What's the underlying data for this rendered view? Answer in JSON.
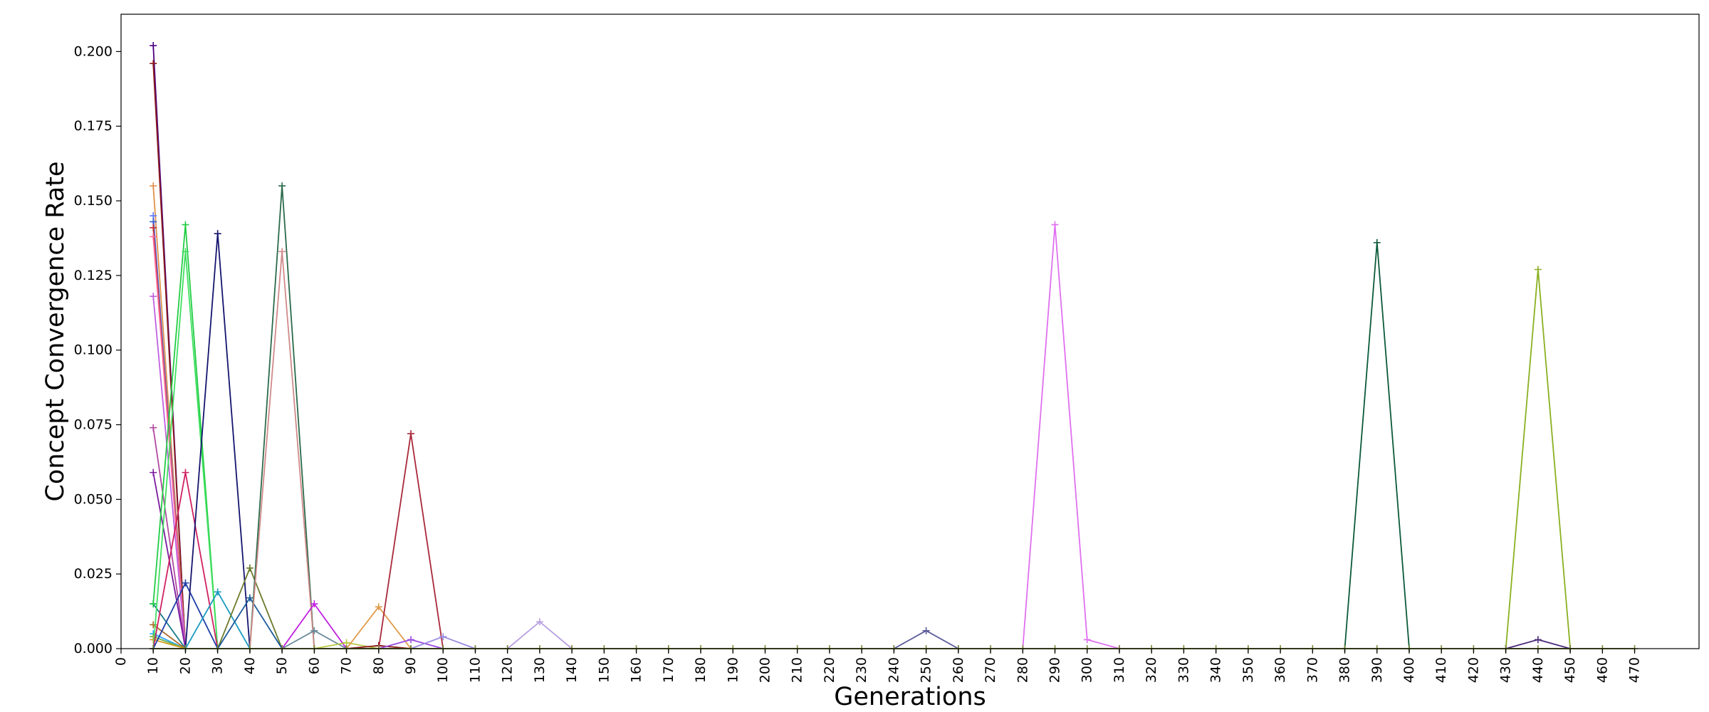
{
  "chart_data": {
    "type": "line",
    "title": "",
    "xlabel": "Generations",
    "ylabel": "Concept Convergence Rate",
    "xlim": [
      0,
      490
    ],
    "ylim": [
      0,
      0.2125
    ],
    "x_ticks": [
      0,
      10,
      20,
      30,
      40,
      50,
      60,
      70,
      80,
      90,
      100,
      110,
      120,
      130,
      140,
      150,
      160,
      170,
      180,
      190,
      200,
      210,
      220,
      230,
      240,
      250,
      260,
      270,
      280,
      290,
      300,
      310,
      320,
      330,
      340,
      350,
      360,
      370,
      380,
      390,
      400,
      410,
      420,
      430,
      440,
      450,
      460,
      470
    ],
    "y_ticks": [
      0.0,
      0.025,
      0.05,
      0.075,
      0.1,
      0.125,
      0.15,
      0.175,
      0.2
    ],
    "y_tick_labels": [
      "0.000",
      "0.025",
      "0.050",
      "0.075",
      "0.100",
      "0.125",
      "0.150",
      "0.175",
      "0.200"
    ],
    "grid": false,
    "legend": "none",
    "marker": "+",
    "baseline": {
      "x": [
        10,
        470
      ],
      "y": 0,
      "color": "#7a8a3a"
    },
    "series": [
      {
        "color": "#4b0082",
        "x": [
          10,
          20
        ],
        "y": [
          0.202,
          0.0
        ]
      },
      {
        "color": "#8b1a1a",
        "x": [
          10,
          20
        ],
        "y": [
          0.196,
          0.0
        ]
      },
      {
        "color": "#e0904a",
        "x": [
          10,
          20
        ],
        "y": [
          0.155,
          0.0
        ]
      },
      {
        "color": "#5a7aff",
        "x": [
          10,
          20
        ],
        "y": [
          0.145,
          0.0
        ]
      },
      {
        "color": "#3a5fcd",
        "x": [
          10,
          20
        ],
        "y": [
          0.143,
          0.0
        ]
      },
      {
        "color": "#c83232",
        "x": [
          10,
          20
        ],
        "y": [
          0.141,
          0.0
        ]
      },
      {
        "color": "#ff6a9a",
        "x": [
          10,
          20
        ],
        "y": [
          0.138,
          0.0
        ]
      },
      {
        "color": "#c060e0",
        "x": [
          10,
          20
        ],
        "y": [
          0.118,
          0.0
        ]
      },
      {
        "color": "#b04aa0",
        "x": [
          10,
          20
        ],
        "y": [
          0.074,
          0.0
        ]
      },
      {
        "color": "#7a1aa0",
        "x": [
          10,
          20
        ],
        "y": [
          0.059,
          0.0
        ]
      },
      {
        "color": "#1a7a8a",
        "x": [
          10,
          20
        ],
        "y": [
          0.015,
          0.0
        ]
      },
      {
        "color": "#2aa8ff",
        "x": [
          10,
          20
        ],
        "y": [
          0.005,
          0.0
        ]
      },
      {
        "color": "#aa6a2a",
        "x": [
          10,
          20
        ],
        "y": [
          0.008,
          0.0
        ]
      },
      {
        "color": "#6ab04a",
        "x": [
          10,
          20
        ],
        "y": [
          0.004,
          0.0
        ]
      },
      {
        "color": "#d0a020",
        "x": [
          10,
          20
        ],
        "y": [
          0.003,
          0.0
        ]
      },
      {
        "color": "#22cc44",
        "x": [
          10,
          20,
          30
        ],
        "y": [
          0.015,
          0.142,
          0.0
        ]
      },
      {
        "color": "#40e060",
        "x": [
          10,
          20,
          30
        ],
        "y": [
          0.0,
          0.133,
          0.0
        ]
      },
      {
        "color": "#d02060",
        "x": [
          10,
          20,
          30
        ],
        "y": [
          0.0,
          0.059,
          0.0
        ]
      },
      {
        "color": "#1f3fa8",
        "x": [
          10,
          20,
          30
        ],
        "y": [
          0.0,
          0.022,
          0.0
        ]
      },
      {
        "color": "#14146e",
        "x": [
          20,
          30,
          40
        ],
        "y": [
          0.0,
          0.139,
          0.0
        ]
      },
      {
        "color": "#1a9ac0",
        "x": [
          20,
          30,
          40
        ],
        "y": [
          0.0,
          0.019,
          0.0
        ]
      },
      {
        "color": "#6a7a2a",
        "x": [
          30,
          40,
          50
        ],
        "y": [
          0.0,
          0.027,
          0.0
        ]
      },
      {
        "color": "#1a5a9a",
        "x": [
          30,
          40,
          50
        ],
        "y": [
          0.0,
          0.017,
          0.0
        ]
      },
      {
        "color": "#2a6a4a",
        "x": [
          40,
          50,
          60
        ],
        "y": [
          0.0,
          0.155,
          0.0
        ]
      },
      {
        "color": "#d08a8a",
        "x": [
          40,
          50,
          60
        ],
        "y": [
          0.0,
          0.133,
          0.0
        ]
      },
      {
        "color": "#c020e0",
        "x": [
          50,
          60,
          70
        ],
        "y": [
          0.0,
          0.015,
          0.0
        ]
      },
      {
        "color": "#6a8a9a",
        "x": [
          50,
          60,
          70
        ],
        "y": [
          0.0,
          0.006,
          0.0
        ]
      },
      {
        "color": "#b8c840",
        "x": [
          60,
          70,
          80
        ],
        "y": [
          0.0,
          0.002,
          0.0
        ]
      },
      {
        "color": "#e09a4a",
        "x": [
          70,
          80,
          90
        ],
        "y": [
          0.0,
          0.014,
          0.0
        ]
      },
      {
        "color": "#8a1a1a",
        "x": [
          70,
          80,
          90
        ],
        "y": [
          0.0,
          0.001,
          0.0
        ]
      },
      {
        "color": "#a8283a",
        "x": [
          80,
          90,
          100
        ],
        "y": [
          0.0,
          0.072,
          0.0
        ]
      },
      {
        "color": "#9a4ae0",
        "x": [
          80,
          90,
          100
        ],
        "y": [
          0.0,
          0.003,
          0.0
        ]
      },
      {
        "color": "#9a8ae0",
        "x": [
          90,
          100,
          110
        ],
        "y": [
          0.0,
          0.004,
          0.0
        ]
      },
      {
        "color": "#b8a0e0",
        "x": [
          120,
          130,
          140
        ],
        "y": [
          0.0,
          0.009,
          0.0
        ]
      },
      {
        "color": "#5a5a9a",
        "x": [
          240,
          250,
          260
        ],
        "y": [
          0.0,
          0.006,
          0.0
        ]
      },
      {
        "color": "#e070f0",
        "x": [
          280,
          290,
          300,
          310
        ],
        "y": [
          0.0,
          0.142,
          0.003,
          0.0
        ]
      },
      {
        "color": "#0a5a3a",
        "x": [
          380,
          390,
          400
        ],
        "y": [
          0.0,
          0.136,
          0.0
        ]
      },
      {
        "color": "#8ab020",
        "x": [
          430,
          440,
          450
        ],
        "y": [
          0.0,
          0.127,
          0.0
        ]
      },
      {
        "color": "#4a2a7a",
        "x": [
          430,
          440,
          450
        ],
        "y": [
          0.0,
          0.003,
          0.0
        ]
      }
    ]
  }
}
